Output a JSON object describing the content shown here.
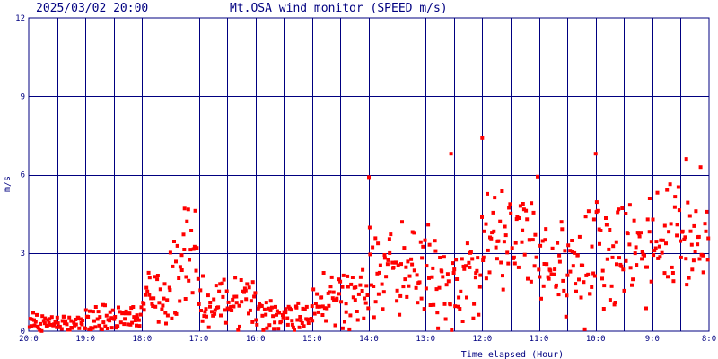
{
  "header": {
    "timestamp": "2025/03/02 20:00",
    "title": "Mt.OSA wind monitor (SPEED m/s)"
  },
  "colors": {
    "background": "#ffffff",
    "grid": "#000080",
    "text": "#000080",
    "points": "#ff0000"
  },
  "chart_data": {
    "type": "scatter",
    "title": "Mt.OSA wind monitor (SPEED m/s)",
    "xlabel": "Time elapsed (Hour)",
    "ylabel": "m/s",
    "x_tick_labels": [
      "20:0",
      "19:0",
      "18:0",
      "17:0",
      "16:0",
      "15:0",
      "14:0",
      "13:0",
      "12:0",
      "11:0",
      "10:0",
      "9:0",
      "8:0"
    ],
    "y_tick_labels": [
      "0",
      "3",
      "6",
      "9",
      "12"
    ],
    "y_ticks": [
      0,
      3,
      6,
      9,
      12
    ],
    "xlim": [
      0,
      12
    ],
    "ylim": [
      0,
      12
    ],
    "x_reversed_time": true,
    "grid": true,
    "legend": "none",
    "series": [
      {
        "color": "#ff0000",
        "hour_profile": [
          {
            "range": [
              0,
              1
            ],
            "typical": 0.3,
            "spread": 0.3
          },
          {
            "range": [
              1,
              2
            ],
            "typical": 0.5,
            "spread": 0.4
          },
          {
            "range": [
              2,
              2.5
            ],
            "typical": 1.3,
            "spread": 0.8
          },
          {
            "range": [
              2.5,
              3
            ],
            "typical": 2.5,
            "spread": 1.4
          },
          {
            "range": [
              3,
              4
            ],
            "typical": 1.2,
            "spread": 0.8
          },
          {
            "range": [
              4,
              5
            ],
            "typical": 0.6,
            "spread": 0.6
          },
          {
            "range": [
              5,
              6
            ],
            "typical": 1.4,
            "spread": 0.8
          },
          {
            "range": [
              6,
              7
            ],
            "typical": 2.2,
            "spread": 1.5
          },
          {
            "range": [
              7,
              8
            ],
            "typical": 2.0,
            "spread": 1.4
          },
          {
            "range": [
              8,
              9
            ],
            "typical": 3.4,
            "spread": 1.7
          },
          {
            "range": [
              9,
              10
            ],
            "typical": 2.6,
            "spread": 1.5
          },
          {
            "range": [
              10,
              11
            ],
            "typical": 3.2,
            "spread": 1.6
          },
          {
            "range": [
              11,
              12
            ],
            "typical": 3.6,
            "spread": 1.6
          }
        ],
        "points_per_hour": 60,
        "notable_peaks": [
          {
            "x": 2.75,
            "y": 4.7
          },
          {
            "x": 6.0,
            "y": 5.9
          },
          {
            "x": 7.45,
            "y": 6.8
          },
          {
            "x": 8.0,
            "y": 7.4
          },
          {
            "x": 10.0,
            "y": 6.8
          },
          {
            "x": 11.6,
            "y": 6.6
          }
        ]
      }
    ]
  }
}
